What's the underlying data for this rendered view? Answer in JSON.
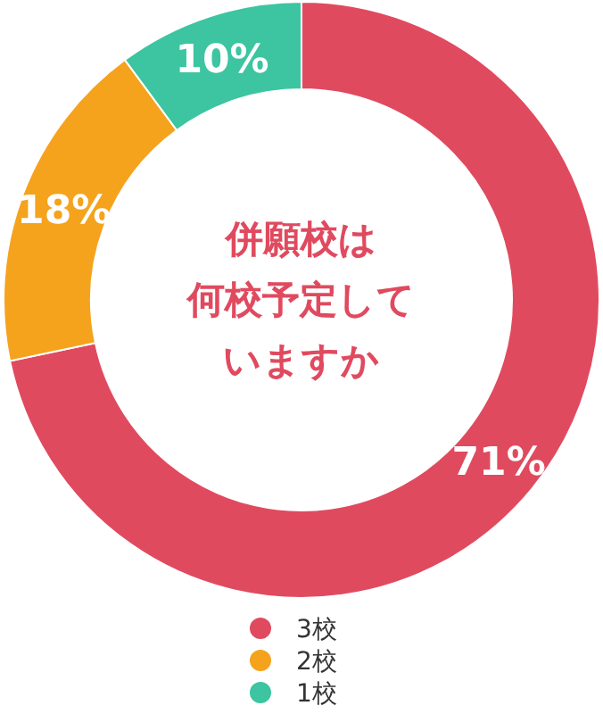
{
  "chart_data": {
    "type": "donut",
    "annotations": [
      "併願校は",
      "何校予定して",
      "いますか"
    ],
    "categories": [
      "3校",
      "2校",
      "1校"
    ],
    "values": [
      71,
      18,
      10
    ],
    "colors": [
      "#e04a5f",
      "#f5a31d",
      "#3cc5a0"
    ],
    "value_labels": [
      "71%",
      "18%",
      "10%"
    ],
    "legend": "bottom"
  }
}
